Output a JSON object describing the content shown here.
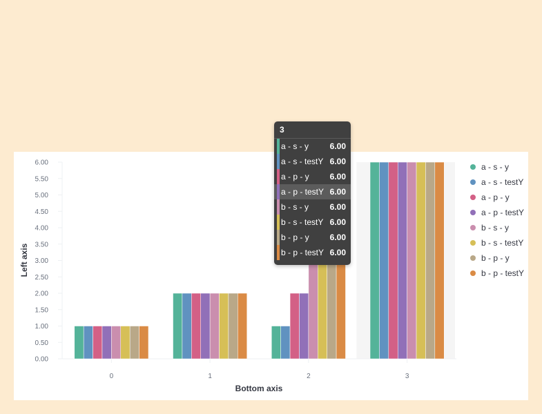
{
  "chart_data": {
    "type": "bar",
    "categories": [
      "0",
      "1",
      "2",
      "3"
    ],
    "series": [
      {
        "name": "a - s - y",
        "color": "#54b399",
        "values": [
          1,
          2,
          1,
          6
        ]
      },
      {
        "name": "a - s - testY",
        "color": "#6092c0",
        "values": [
          1,
          2,
          1,
          6
        ]
      },
      {
        "name": "a - p - y",
        "color": "#d36086",
        "values": [
          1,
          2,
          2,
          6
        ]
      },
      {
        "name": "a - p - testY",
        "color": "#9170b8",
        "values": [
          1,
          2,
          2,
          6
        ]
      },
      {
        "name": "b - s - y",
        "color": "#ca8eae",
        "values": [
          1,
          2,
          6,
          6
        ]
      },
      {
        "name": "b - s - testY",
        "color": "#d6bf57",
        "values": [
          1,
          2,
          6,
          6
        ]
      },
      {
        "name": "b - p - y",
        "color": "#b9a888",
        "values": [
          1,
          2,
          6,
          6
        ]
      },
      {
        "name": "b - p - testY",
        "color": "#da8b45",
        "values": [
          1,
          2,
          6,
          6
        ]
      }
    ],
    "xlabel": "Bottom axis",
    "ylabel": "Left axis",
    "ylim": [
      0,
      6
    ],
    "yticks": [
      "0.00",
      "0.50",
      "1.00",
      "1.50",
      "2.00",
      "2.50",
      "3.00",
      "3.50",
      "4.00",
      "4.50",
      "5.00",
      "5.50",
      "6.00"
    ],
    "highlighted_category": "3",
    "legend_position": "right",
    "grid": false
  },
  "tooltip": {
    "header": "3",
    "rows": [
      {
        "label": "a - s - y",
        "value": "6.00",
        "color": "#54b399"
      },
      {
        "label": "a - s - testY",
        "value": "6.00",
        "color": "#6092c0"
      },
      {
        "label": "a - p - y",
        "value": "6.00",
        "color": "#d36086"
      },
      {
        "label": "a - p - testY",
        "value": "6.00",
        "color": "#9170b8",
        "active": true
      },
      {
        "label": "b - s - y",
        "value": "6.00",
        "color": "#ca8eae"
      },
      {
        "label": "b - s - testY",
        "value": "6.00",
        "color": "#d6bf57"
      },
      {
        "label": "b - p - y",
        "value": "6.00",
        "color": "#b9a888"
      },
      {
        "label": "b - p - testY",
        "value": "6.00",
        "color": "#da8b45"
      }
    ]
  }
}
